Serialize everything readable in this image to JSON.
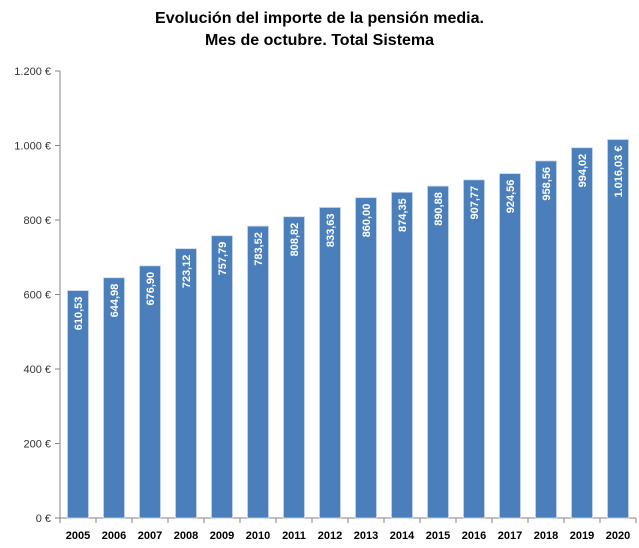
{
  "chart_data": {
    "type": "bar",
    "title_line1": "Evolución del importe de la pensión media.",
    "title_line2": "Mes de octubre. Total Sistema",
    "categories": [
      "2005",
      "2006",
      "2007",
      "2008",
      "2009",
      "2010",
      "2011",
      "2012",
      "2013",
      "2014",
      "2015",
      "2016",
      "2017",
      "2018",
      "2019",
      "2020"
    ],
    "values": [
      610.53,
      644.98,
      676.9,
      723.12,
      757.79,
      783.52,
      808.82,
      833.63,
      860.0,
      874.35,
      890.88,
      907.77,
      924.56,
      958.56,
      994.02,
      1016.03
    ],
    "data_labels": [
      "610,53",
      "644,98",
      "676,90",
      "723,12",
      "757,79",
      "783,52",
      "808,82",
      "833,63",
      "860,00",
      "874,35",
      "890,88",
      "907,77",
      "924,56",
      "958,56",
      "994,02",
      "1.016,03 €"
    ],
    "yticks": [
      0,
      200,
      400,
      600,
      800,
      1000,
      1200
    ],
    "ytick_labels": [
      "0 €",
      "200 €",
      "400 €",
      "600 €",
      "800 €",
      "1.000 €",
      "1.200 €"
    ],
    "ylim": [
      0,
      1200
    ],
    "grid": false,
    "bar_color": "#4a7fbb"
  }
}
